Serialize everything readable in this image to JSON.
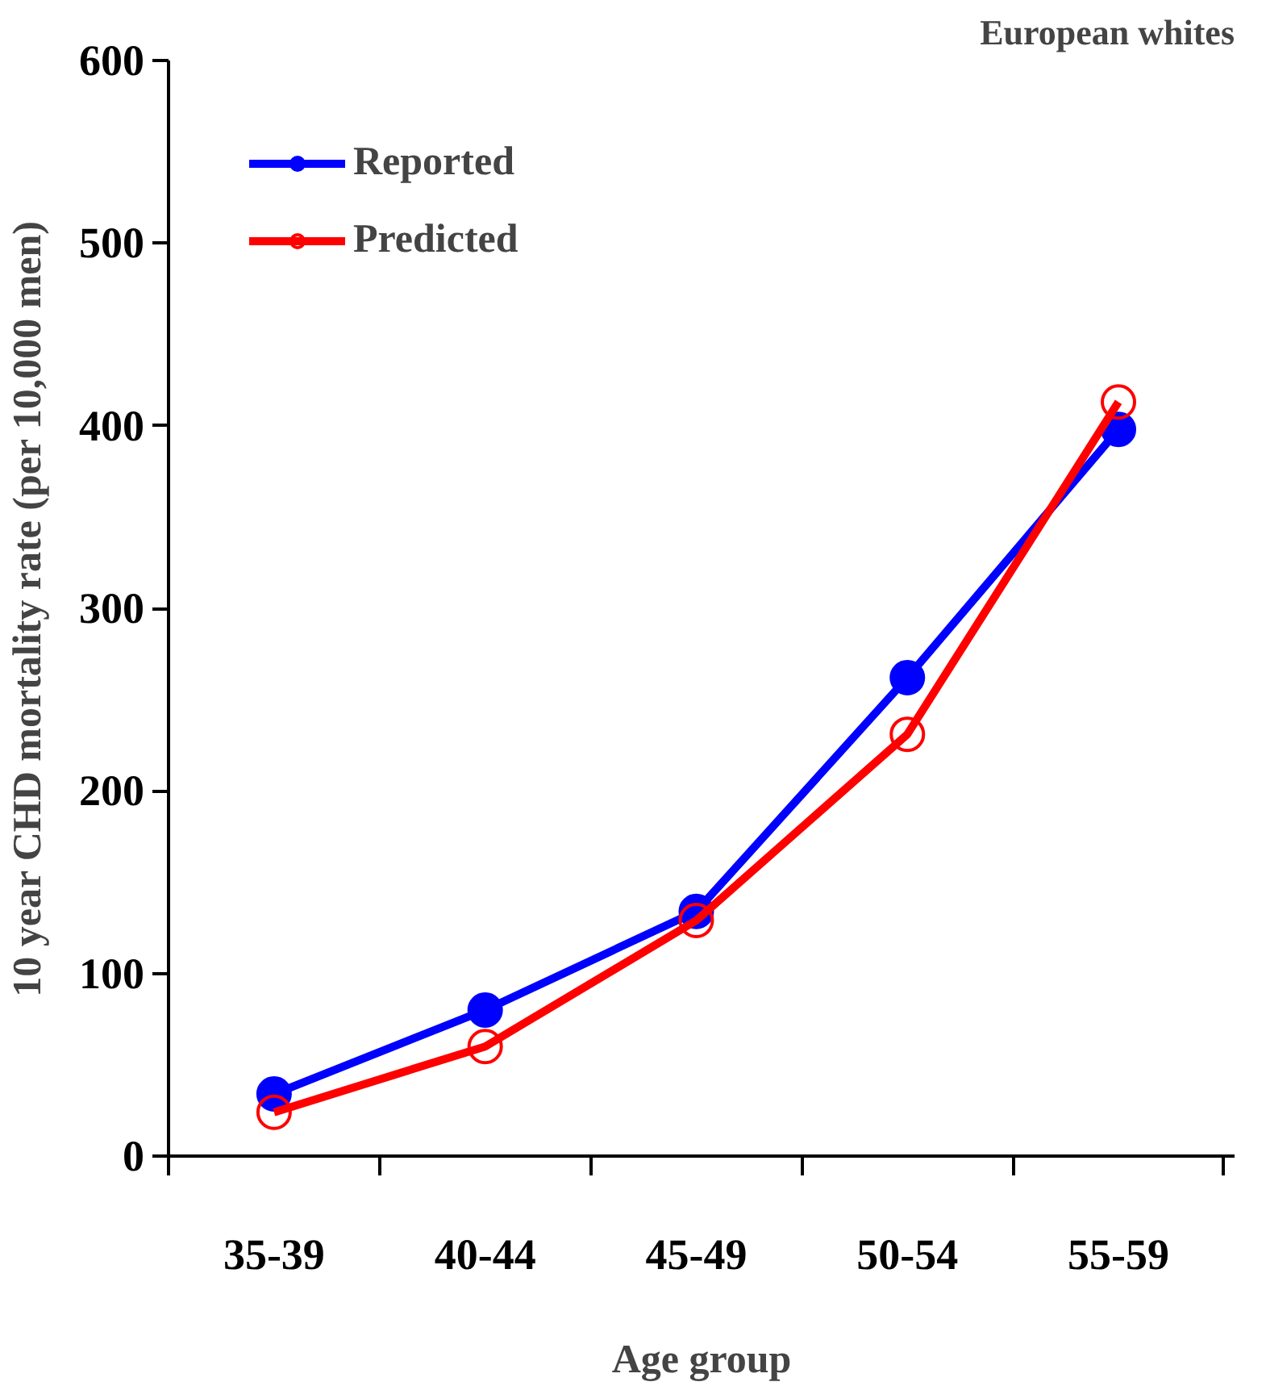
{
  "chart_data": {
    "type": "line",
    "title": "European whites",
    "xlabel": "Age group",
    "ylabel": "10 year CHD mortality rate (per 10,000 men)",
    "categories": [
      "35-39",
      "40-44",
      "45-49",
      "50-54",
      "55-59"
    ],
    "series": [
      {
        "name": "Reported",
        "color": "#0000ff",
        "values": [
          34,
          80,
          134,
          262,
          398
        ]
      },
      {
        "name": "Predicted",
        "color": "#ff0000",
        "values": [
          24,
          60,
          129,
          231,
          413
        ]
      }
    ],
    "ylim": [
      0,
      600
    ],
    "yticks": [
      0,
      100,
      200,
      300,
      400,
      500,
      600
    ],
    "grid": false,
    "legend": "top left",
    "marker": "circle",
    "line_style": "solid"
  }
}
